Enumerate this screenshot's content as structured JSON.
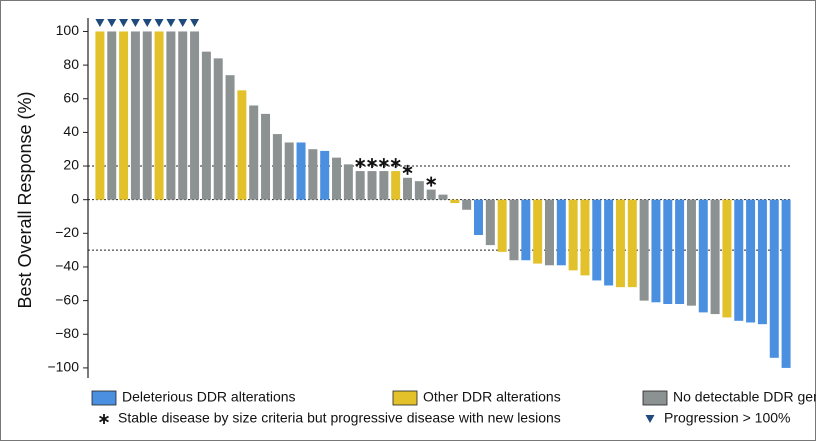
{
  "chart_data": {
    "type": "bar",
    "y_label": "Best Overall Response (%)",
    "ylim": [
      -106,
      108
    ],
    "yticks": [
      {
        "value": -100,
        "label": "−100"
      },
      {
        "value": -80,
        "label": "−80"
      },
      {
        "value": -60,
        "label": "−60"
      },
      {
        "value": -40,
        "label": "−40"
      },
      {
        "value": -20,
        "label": "−20"
      },
      0,
      20,
      40,
      60,
      80,
      100
    ],
    "reference_lines": [
      20,
      0,
      -30
    ],
    "series": [
      {
        "name": "Deleterious DDR alterations",
        "color": "#4a8fe0",
        "values": [
          null,
          null,
          null,
          null,
          null,
          null,
          null,
          null,
          null,
          null,
          null,
          null,
          null,
          null,
          null,
          null,
          null,
          34,
          null,
          29,
          null,
          null,
          null,
          null,
          null,
          null,
          null,
          null,
          null,
          null,
          null,
          null,
          -21,
          null,
          null,
          null,
          -36,
          null,
          null,
          -39,
          null,
          null,
          -48,
          -51,
          null,
          null,
          null,
          -61,
          -62,
          -62,
          null,
          -67,
          null,
          null,
          -72,
          -73,
          -74,
          -94,
          -100
        ]
      },
      {
        "name": "Other DDR alterations",
        "color": "#e2c12a",
        "values": [
          100,
          null,
          100,
          null,
          null,
          100,
          null,
          null,
          null,
          null,
          null,
          null,
          65,
          null,
          null,
          null,
          null,
          null,
          null,
          null,
          null,
          null,
          null,
          null,
          null,
          17,
          null,
          null,
          null,
          null,
          -2,
          null,
          null,
          null,
          -31,
          null,
          null,
          -38,
          null,
          null,
          -42,
          -45,
          null,
          null,
          -52,
          -52,
          null,
          null,
          null,
          null,
          null,
          null,
          null,
          -70,
          null,
          null,
          null,
          null,
          null
        ]
      },
      {
        "name": "No detectable DDR genes",
        "color": "#8c9191",
        "values": [
          null,
          100,
          null,
          100,
          100,
          null,
          100,
          100,
          100,
          88,
          84,
          74,
          null,
          56,
          51,
          39,
          34,
          null,
          30,
          null,
          25,
          21,
          17,
          17,
          17,
          null,
          13,
          11,
          6,
          3,
          null,
          -6,
          null,
          -27,
          null,
          -36,
          null,
          null,
          -39,
          null,
          null,
          null,
          null,
          null,
          null,
          null,
          -60,
          null,
          null,
          null,
          -63,
          null,
          -68,
          null,
          null,
          null,
          null,
          null,
          null
        ]
      }
    ],
    "markers": [
      {
        "name": "Stable disease by size criteria but progressive disease with new lesions",
        "shape": "asterisk",
        "color": "#111111",
        "bars": [
          22,
          23,
          24,
          25,
          26,
          28
        ]
      },
      {
        "name": "Progression > 100%",
        "shape": "triangle",
        "color": "#1f4a7c",
        "bars": [
          0,
          1,
          2,
          3,
          4,
          5,
          6,
          7,
          8
        ]
      }
    ]
  }
}
